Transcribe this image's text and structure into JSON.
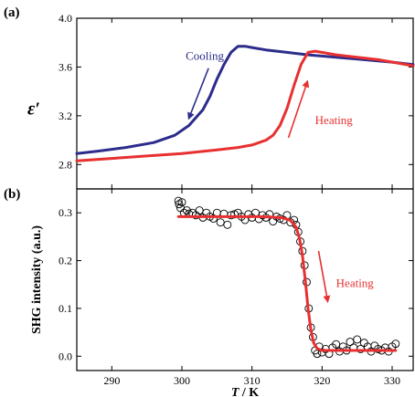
{
  "colors": {
    "cooling": "#2c2c8c",
    "heating": "#e83030",
    "axis": "#000000",
    "marker_edge": "#000000"
  },
  "chart_data": [
    {
      "panel_label": "(a)",
      "type": "line",
      "ylabel": "ε′",
      "xlabel": "",
      "xlim": [
        285,
        333
      ],
      "ylim": [
        2.6,
        4.0
      ],
      "yticks": [
        2.8,
        3.2,
        3.6,
        4.0
      ],
      "ytick_labels": [
        "2.8",
        "3.2",
        "3.6",
        "4.0"
      ],
      "grid": false,
      "series": [
        {
          "name": "Cooling",
          "color_key": "cooling",
          "x": [
            285,
            288,
            292,
            296,
            299,
            301,
            303,
            304,
            305,
            306,
            307,
            308,
            309,
            310,
            312,
            315,
            318,
            322,
            326,
            330,
            333
          ],
          "y": [
            2.89,
            2.91,
            2.94,
            2.98,
            3.04,
            3.12,
            3.25,
            3.36,
            3.5,
            3.62,
            3.72,
            3.77,
            3.77,
            3.76,
            3.74,
            3.72,
            3.7,
            3.68,
            3.66,
            3.64,
            3.62
          ]
        },
        {
          "name": "Heating",
          "color_key": "heating",
          "x": [
            285,
            290,
            295,
            300,
            305,
            308,
            310,
            312,
            313,
            314,
            315,
            316,
            317,
            318,
            319,
            320,
            322,
            325,
            328,
            331,
            333
          ],
          "y": [
            2.83,
            2.85,
            2.87,
            2.89,
            2.92,
            2.94,
            2.96,
            3.0,
            3.04,
            3.12,
            3.26,
            3.45,
            3.62,
            3.72,
            3.73,
            3.72,
            3.7,
            3.68,
            3.66,
            3.63,
            3.61
          ]
        }
      ],
      "annotations": [
        {
          "text": "Cooling",
          "color_key": "cooling",
          "at": [
            306.0,
            3.66
          ],
          "anchor": "end"
        },
        {
          "text": "Heating",
          "color_key": "heating",
          "at": [
            319.0,
            3.13
          ],
          "anchor": "start"
        }
      ],
      "arrows": [
        {
          "color_key": "cooling",
          "from": [
            303.8,
            3.59
          ],
          "to": [
            301.0,
            3.18
          ]
        },
        {
          "color_key": "heating",
          "from": [
            315.2,
            3.02
          ],
          "to": [
            317.9,
            3.48
          ]
        }
      ]
    },
    {
      "panel_label": "(b)",
      "type": "scatter",
      "ylabel": "SHG intensity (a.u.)",
      "xlabel": "T / K",
      "xlim": [
        285,
        333
      ],
      "ylim": [
        -0.03,
        0.35
      ],
      "xticks": [
        290,
        300,
        310,
        320,
        330
      ],
      "xtick_labels": [
        "290",
        "300",
        "310",
        "320",
        "330"
      ],
      "yticks": [
        0.0,
        0.1,
        0.2,
        0.3
      ],
      "ytick_labels": [
        "0.0",
        "0.1",
        "0.2",
        "0.3"
      ],
      "grid": false,
      "series": [
        {
          "name": "Heating",
          "marker": "open-circle",
          "x": [
            299.5,
            299.6,
            299.8,
            300.0,
            300.3,
            300.7,
            301.0,
            301.5,
            302.0,
            302.5,
            303.0,
            303.5,
            304.0,
            304.5,
            305.0,
            305.5,
            306.0,
            306.5,
            307.0,
            307.5,
            308.0,
            308.5,
            309.0,
            309.5,
            310.0,
            310.5,
            311.0,
            311.5,
            312.0,
            312.5,
            313.0,
            313.5,
            314.0,
            314.5,
            315.0,
            315.5,
            316.0,
            316.3,
            316.6,
            316.9,
            317.2,
            317.5,
            317.8,
            318.1,
            318.4,
            318.7,
            319.0,
            319.3,
            319.6,
            320.0,
            320.5,
            321.0,
            321.5,
            322.0,
            322.5,
            323.0,
            323.5,
            324.0,
            324.5,
            325.0,
            325.5,
            326.0,
            326.5,
            327.0,
            327.5,
            328.0,
            328.5,
            329.0,
            329.5,
            330.0,
            330.5
          ],
          "y": [
            0.325,
            0.318,
            0.31,
            0.322,
            0.3,
            0.305,
            0.298,
            0.3,
            0.295,
            0.305,
            0.29,
            0.3,
            0.292,
            0.288,
            0.3,
            0.28,
            0.298,
            0.275,
            0.295,
            0.297,
            0.3,
            0.292,
            0.285,
            0.297,
            0.29,
            0.3,
            0.287,
            0.295,
            0.29,
            0.297,
            0.282,
            0.292,
            0.288,
            0.285,
            0.295,
            0.28,
            0.285,
            0.275,
            0.26,
            0.24,
            0.22,
            0.19,
            0.155,
            0.1,
            0.06,
            0.04,
            0.012,
            0.005,
            0.02,
            0.008,
            0.015,
            0.005,
            0.018,
            0.025,
            0.01,
            0.02,
            0.012,
            0.03,
            0.018,
            0.035,
            0.015,
            0.028,
            0.02,
            0.01,
            0.022,
            0.015,
            0.012,
            0.018,
            0.01,
            0.02,
            0.026
          ]
        },
        {
          "name": "Fit",
          "color_key": "heating",
          "x": [
            299.5,
            302,
            305,
            308,
            311,
            313,
            314.5,
            315.5,
            316.3,
            316.8,
            317.2,
            317.6,
            318.0,
            318.4,
            318.8,
            319.3,
            320,
            321,
            323,
            326,
            330.5
          ],
          "y": [
            0.292,
            0.292,
            0.292,
            0.292,
            0.292,
            0.291,
            0.289,
            0.284,
            0.27,
            0.245,
            0.21,
            0.16,
            0.1,
            0.055,
            0.028,
            0.016,
            0.012,
            0.012,
            0.012,
            0.012,
            0.012
          ]
        }
      ],
      "annotations": [
        {
          "text": "Heating",
          "color_key": "heating",
          "at": [
            322.0,
            0.145
          ],
          "anchor": "start"
        }
      ],
      "arrows": [
        {
          "color_key": "heating",
          "from": [
            319.5,
            0.22
          ],
          "to": [
            320.8,
            0.115
          ]
        }
      ]
    }
  ]
}
